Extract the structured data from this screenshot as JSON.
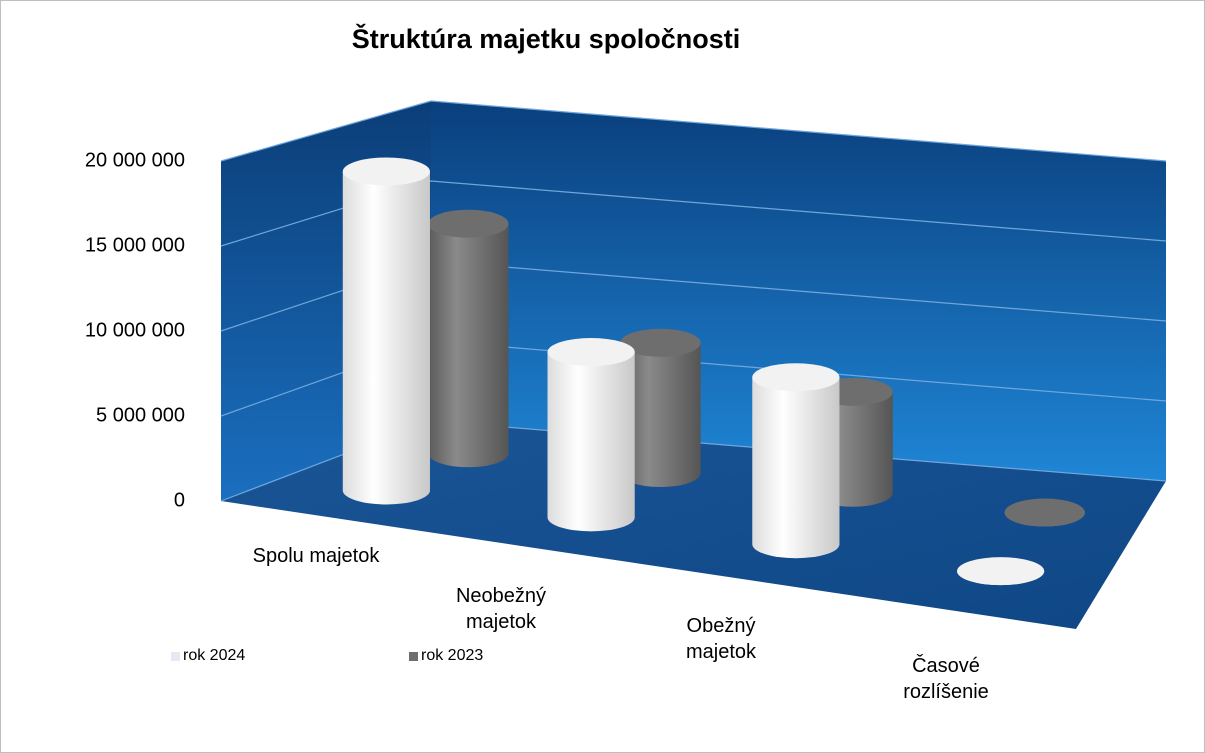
{
  "chart_data": {
    "type": "cylinder3d",
    "title": "Štruktúra majetku spoločnosti",
    "categories": [
      "Spolu majetok",
      "Neobežný majetok",
      "Obežný majetok",
      "Časové rozlíšenie"
    ],
    "series": [
      {
        "name": "rok 2024",
        "color": "#f2f2f2",
        "values": [
          19100000,
          9900000,
          10000000,
          0
        ]
      },
      {
        "name": "rok 2023",
        "color": "#6e6e6e",
        "values": [
          14100000,
          8000000,
          6200000,
          0
        ]
      }
    ],
    "ylim": [
      0,
      20000000
    ],
    "yticks": [
      {
        "value": 0,
        "label": "0"
      },
      {
        "value": 5000000,
        "label": "5 000 000"
      },
      {
        "value": 10000000,
        "label": "10 000 000"
      },
      {
        "value": 15000000,
        "label": "15 000 000"
      },
      {
        "value": 20000000,
        "label": "20 000 000"
      }
    ],
    "grid": true
  }
}
